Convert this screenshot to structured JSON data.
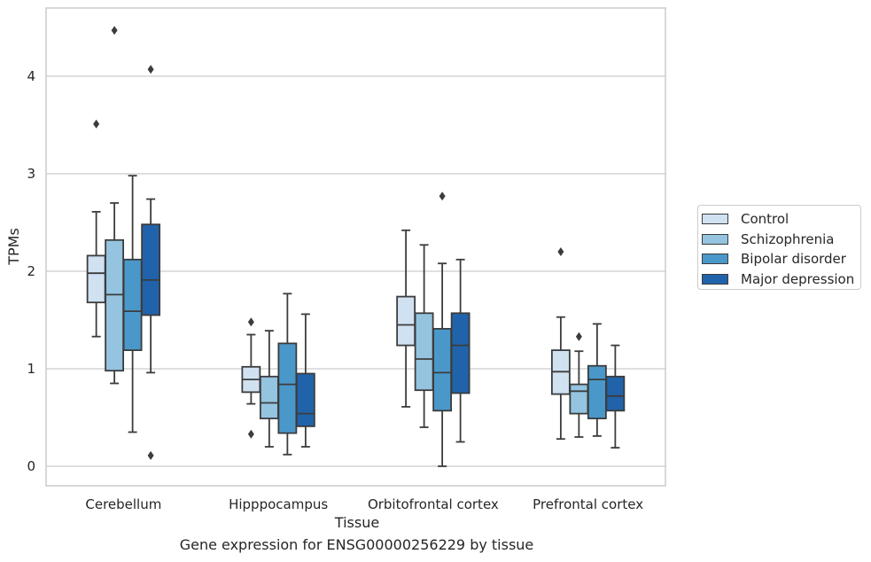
{
  "chart_data": {
    "type": "box",
    "xlabel": "Tissue",
    "ylabel": "TPMs",
    "ylim": [
      -0.2,
      4.7
    ],
    "yticks": [
      0,
      1,
      2,
      3,
      4
    ],
    "categories": [
      "Cerebellum",
      "Hipppocampus",
      "Orbitofrontal cortex",
      "Prefrontal cortex"
    ],
    "grid": true,
    "legend_position": "outside-right",
    "colors": {
      "Control": "#d0e1f2",
      "Schizophrenia": "#94c4df",
      "Bipolar disorder": "#4a98c9",
      "Major depression": "#2163aa",
      "grid": "#cccccc",
      "box_edge": "#3c3c3c"
    },
    "series": [
      {
        "name": "Control",
        "boxes": [
          {
            "q1": 1.68,
            "median": 1.98,
            "q3": 2.16,
            "whisker_low": 1.33,
            "whisker_high": 2.61,
            "outliers": [
              3.51
            ]
          },
          {
            "q1": 0.76,
            "median": 0.89,
            "q3": 1.02,
            "whisker_low": 0.64,
            "whisker_high": 1.35,
            "outliers": [
              0.33,
              1.48
            ]
          },
          {
            "q1": 1.24,
            "median": 1.45,
            "q3": 1.74,
            "whisker_low": 0.61,
            "whisker_high": 2.42,
            "outliers": []
          },
          {
            "q1": 0.74,
            "median": 0.97,
            "q3": 1.19,
            "whisker_low": 0.28,
            "whisker_high": 1.53,
            "outliers": [
              2.2
            ]
          }
        ]
      },
      {
        "name": "Schizophrenia",
        "boxes": [
          {
            "q1": 0.98,
            "median": 1.76,
            "q3": 2.32,
            "whisker_low": 0.85,
            "whisker_high": 2.7,
            "outliers": [
              4.47
            ]
          },
          {
            "q1": 0.49,
            "median": 0.65,
            "q3": 0.92,
            "whisker_low": 0.2,
            "whisker_high": 1.39,
            "outliers": []
          },
          {
            "q1": 0.78,
            "median": 1.1,
            "q3": 1.57,
            "whisker_low": 0.4,
            "whisker_high": 2.27,
            "outliers": []
          },
          {
            "q1": 0.54,
            "median": 0.77,
            "q3": 0.84,
            "whisker_low": 0.3,
            "whisker_high": 1.18,
            "outliers": [
              1.33
            ]
          }
        ]
      },
      {
        "name": "Bipolar disorder",
        "boxes": [
          {
            "q1": 1.19,
            "median": 1.59,
            "q3": 2.12,
            "whisker_low": 0.35,
            "whisker_high": 2.98,
            "outliers": []
          },
          {
            "q1": 0.34,
            "median": 0.84,
            "q3": 1.26,
            "whisker_low": 0.12,
            "whisker_high": 1.77,
            "outliers": []
          },
          {
            "q1": 0.57,
            "median": 0.96,
            "q3": 1.41,
            "whisker_low": 0.0,
            "whisker_high": 2.08,
            "outliers": [
              2.77
            ]
          },
          {
            "q1": 0.49,
            "median": 0.89,
            "q3": 1.03,
            "whisker_low": 0.31,
            "whisker_high": 1.46,
            "outliers": []
          }
        ]
      },
      {
        "name": "Major depression",
        "boxes": [
          {
            "q1": 1.55,
            "median": 1.91,
            "q3": 2.48,
            "whisker_low": 0.96,
            "whisker_high": 2.74,
            "outliers": [
              4.07,
              0.11
            ]
          },
          {
            "q1": 0.41,
            "median": 0.54,
            "q3": 0.95,
            "whisker_low": 0.2,
            "whisker_high": 1.56,
            "outliers": []
          },
          {
            "q1": 0.75,
            "median": 1.24,
            "q3": 1.57,
            "whisker_low": 0.25,
            "whisker_high": 2.12,
            "outliers": []
          },
          {
            "q1": 0.57,
            "median": 0.72,
            "q3": 0.92,
            "whisker_low": 0.19,
            "whisker_high": 1.24,
            "outliers": []
          }
        ]
      }
    ]
  },
  "caption": "Gene expression for ENSG00000256229 by tissue"
}
